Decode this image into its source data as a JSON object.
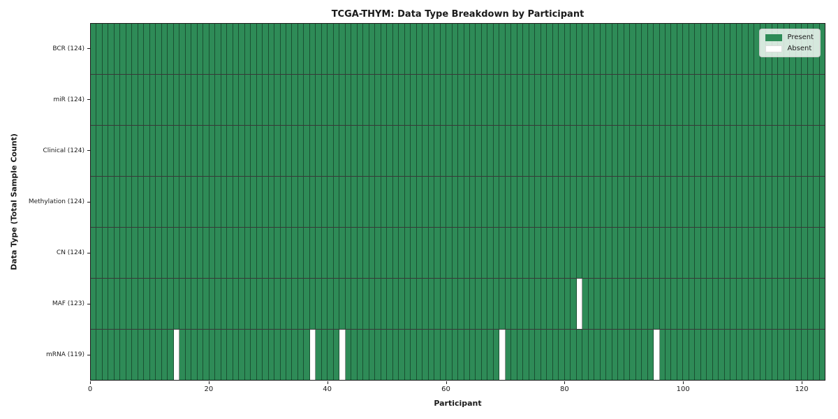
{
  "chart_data": {
    "type": "heatmap",
    "title": "TCGA-THYM: Data Type Breakdown by Participant",
    "xlabel": "Participant",
    "ylabel": "Data Type (Total Sample Count)",
    "n_participants": 124,
    "xlim": [
      0,
      124
    ],
    "x_ticks": [
      0,
      20,
      40,
      60,
      80,
      100,
      120
    ],
    "grid": "cell-borders",
    "legend": {
      "position": "upper right",
      "entries": [
        {
          "label": "Present",
          "color": "#2e8b57"
        },
        {
          "label": "Absent",
          "color": "#ffffff"
        }
      ]
    },
    "colors": {
      "present": "#2e8b57",
      "absent": "#ffffff",
      "cell_edge": "rgba(0,0,0,0.42)"
    },
    "rows": [
      {
        "label": "BCR (124)",
        "data_type": "BCR",
        "present_count": 124,
        "absent_participants": []
      },
      {
        "label": "miR (124)",
        "data_type": "miR",
        "present_count": 124,
        "absent_participants": []
      },
      {
        "label": "Clinical (124)",
        "data_type": "Clinical",
        "present_count": 124,
        "absent_participants": []
      },
      {
        "label": "Methylation (124)",
        "data_type": "Methylation",
        "present_count": 124,
        "absent_participants": []
      },
      {
        "label": "CN (124)",
        "data_type": "CN",
        "present_count": 124,
        "absent_participants": []
      },
      {
        "label": "MAF (123)",
        "data_type": "MAF",
        "present_count": 123,
        "absent_participants": [
          82
        ]
      },
      {
        "label": "mRNA (119)",
        "data_type": "mRNA",
        "present_count": 119,
        "absent_participants": [
          14,
          37,
          42,
          69,
          95
        ]
      }
    ]
  }
}
